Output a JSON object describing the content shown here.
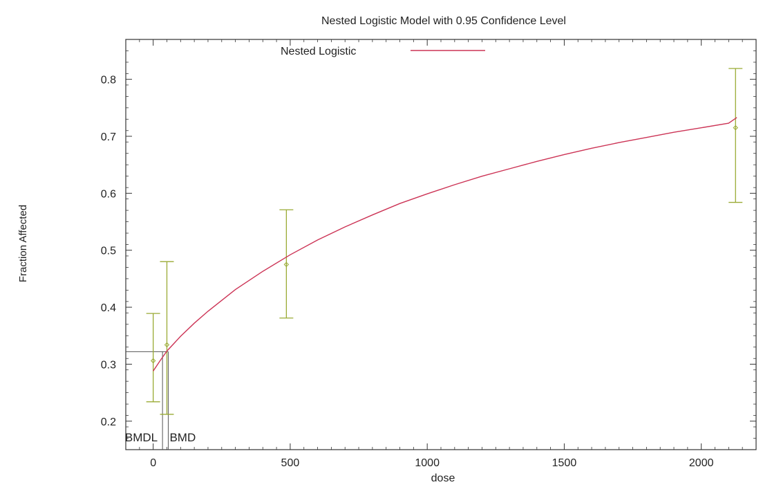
{
  "chart_data": {
    "type": "line",
    "title": "Nested Logistic Model with 0.95 Confidence Level",
    "xlabel": "dose",
    "ylabel": "Fraction Affected",
    "xlim": [
      -100,
      2200
    ],
    "ylim": [
      0.15,
      0.87
    ],
    "x_ticks": [
      0,
      500,
      1000,
      1500,
      2000
    ],
    "x_tick_labels": [
      "0",
      "500",
      "1000",
      "1500",
      "2000"
    ],
    "y_ticks": [
      0.2,
      0.3,
      0.4,
      0.5,
      0.6,
      0.7,
      0.8
    ],
    "y_tick_labels": [
      "0.2",
      "0.3",
      "0.4",
      "0.5",
      "0.6",
      "0.7",
      "0.8"
    ],
    "legend": {
      "label": "Nested Logistic",
      "position": "top-center"
    },
    "colors": {
      "curve": "#cc3355",
      "data": "#99aa33",
      "frame": "#333333",
      "bmd_line": "#555555"
    },
    "series": [
      {
        "name": "Nested Logistic",
        "x": [
          0,
          25,
          50,
          100,
          150,
          200,
          300,
          400,
          500,
          600,
          700,
          800,
          900,
          1000,
          1100,
          1200,
          1300,
          1400,
          1500,
          1600,
          1700,
          1800,
          1900,
          2000,
          2100,
          2130
        ],
        "y": [
          0.288,
          0.306,
          0.323,
          0.349,
          0.372,
          0.393,
          0.431,
          0.463,
          0.492,
          0.518,
          0.541,
          0.562,
          0.582,
          0.599,
          0.615,
          0.63,
          0.643,
          0.656,
          0.668,
          0.679,
          0.689,
          0.698,
          0.707,
          0.715,
          0.723,
          0.733
        ]
      }
    ],
    "observations": [
      {
        "x": 0,
        "y": 0.306,
        "lower": 0.234,
        "upper": 0.389
      },
      {
        "x": 50,
        "y": 0.334,
        "lower": 0.212,
        "upper": 0.48
      },
      {
        "x": 486,
        "y": 0.475,
        "lower": 0.381,
        "upper": 0.571
      },
      {
        "x": 2125,
        "y": 0.715,
        "lower": 0.584,
        "upper": 0.819
      }
    ],
    "annotations": [
      {
        "text": "BMDL",
        "x": 34
      },
      {
        "text": "BMD",
        "x": 55
      }
    ],
    "bmr_level": 0.322
  }
}
